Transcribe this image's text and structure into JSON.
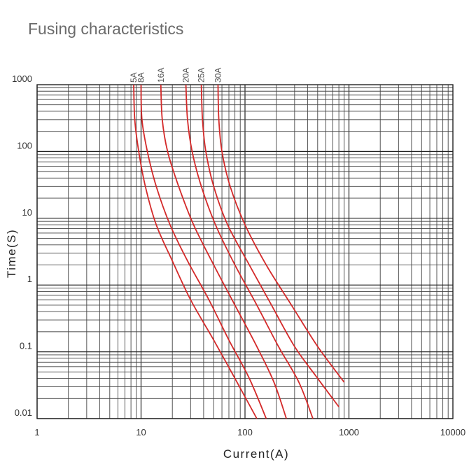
{
  "chart_data": {
    "type": "line",
    "title": "Fusing characteristics",
    "xlabel": "Current(A)",
    "ylabel": "Time(S)",
    "xscale": "log",
    "yscale": "log",
    "xlim": [
      1,
      10000
    ],
    "ylim": [
      0.01,
      1000
    ],
    "xticks": [
      "1",
      "10",
      "100",
      "1000",
      "10000"
    ],
    "yticks": [
      "1000",
      "100",
      "10",
      "1",
      "0.1",
      "0.01"
    ],
    "grid": true,
    "line_color": "#d42a2a",
    "series": [
      {
        "name": "5A",
        "x": [
          8.5,
          8.7,
          9.5,
          11,
          14,
          20,
          30,
          50,
          80,
          130
        ],
        "y": [
          1000,
          300,
          100,
          30,
          8,
          2.3,
          0.6,
          0.15,
          0.04,
          0.01
        ]
      },
      {
        "name": "8A",
        "x": [
          10,
          10.2,
          11.5,
          14,
          19,
          28,
          45,
          70,
          110,
          160
        ],
        "y": [
          1000,
          300,
          100,
          30,
          8,
          2.3,
          0.6,
          0.15,
          0.04,
          0.01
        ]
      },
      {
        "name": "16A",
        "x": [
          15.5,
          16,
          18,
          23,
          32,
          50,
          80,
          130,
          190,
          250
        ],
        "y": [
          1000,
          300,
          100,
          30,
          8,
          2,
          0.5,
          0.12,
          0.035,
          0.01
        ]
      },
      {
        "name": "20A",
        "x": [
          27,
          28,
          31,
          38,
          52,
          80,
          130,
          210,
          330,
          450
        ],
        "y": [
          1000,
          300,
          100,
          30,
          8,
          2,
          0.5,
          0.12,
          0.035,
          0.01
        ]
      },
      {
        "name": "25A",
        "x": [
          38,
          39,
          42,
          50,
          68,
          110,
          180,
          300,
          500,
          800
        ],
        "y": [
          1000,
          300,
          100,
          30,
          8,
          2,
          0.5,
          0.12,
          0.04,
          0.015
        ]
      },
      {
        "name": "30A",
        "x": [
          55,
          56,
          60,
          72,
          100,
          160,
          280,
          500,
          900
        ],
        "y": [
          1000,
          300,
          100,
          30,
          8,
          2,
          0.5,
          0.12,
          0.035
        ]
      }
    ]
  }
}
